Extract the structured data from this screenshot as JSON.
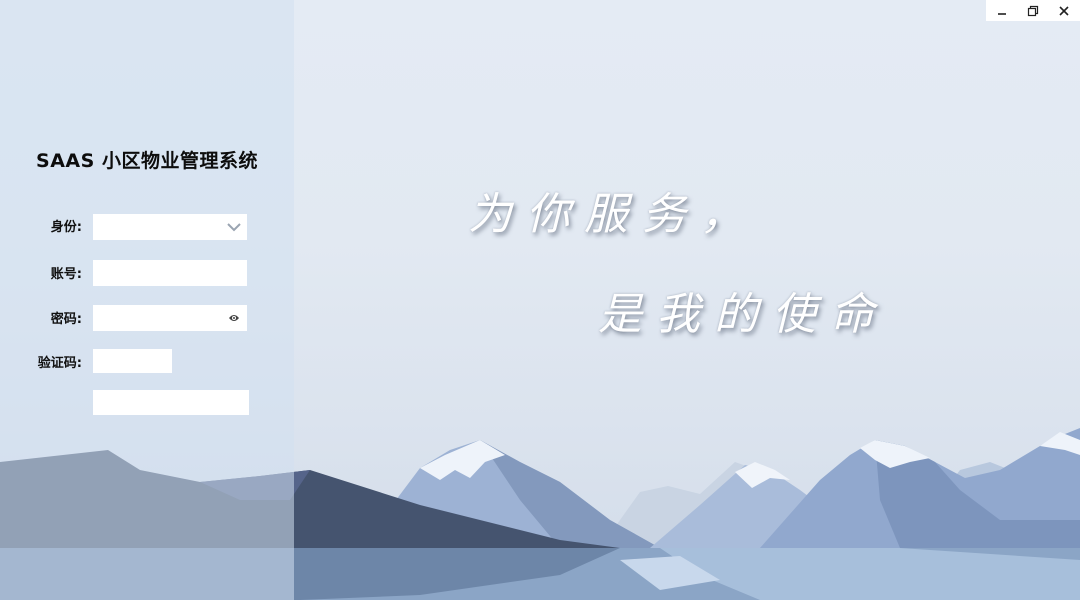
{
  "window": {
    "controls": [
      "minimize",
      "restore",
      "close"
    ]
  },
  "app": {
    "title": "SAAS 小区物业管理系统"
  },
  "form": {
    "identity": {
      "label": "身份:",
      "value": ""
    },
    "account": {
      "label": "账号:",
      "value": ""
    },
    "password": {
      "label": "密码:",
      "value": ""
    },
    "captcha": {
      "label": "验证码:",
      "value": ""
    },
    "login_button": {
      "label": ""
    }
  },
  "slogan": {
    "line1": "为你服务，",
    "line2": "是我的使命"
  },
  "colors": {
    "sky": "#e4ebf4",
    "mountain_dark": "#3f4d67",
    "mountain_blue": "#97aed2",
    "snow": "#eef3fa",
    "water": "#7f9cc0"
  }
}
